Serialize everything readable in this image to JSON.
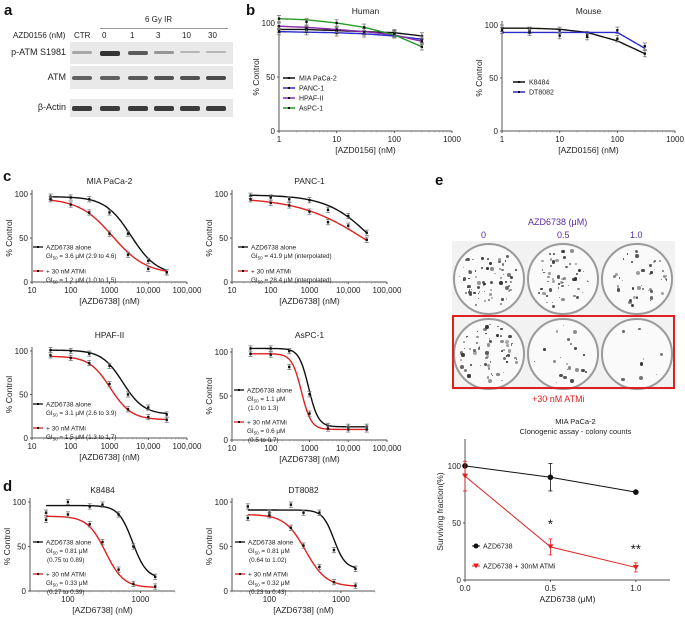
{
  "panel_labels": {
    "a": "a",
    "b": "b",
    "c": "c",
    "d": "d",
    "e": "e"
  },
  "panel_a": {
    "treatment_header": "6 Gy IR",
    "dose_axis_label": "AZD0156 (nM)",
    "lanes": [
      "CTR",
      "0",
      "1",
      "3",
      "10",
      "30"
    ],
    "rows": [
      {
        "label": "p-ATM S1981",
        "intensity": [
          0.25,
          1.0,
          0.75,
          0.35,
          0.15,
          0.15
        ]
      },
      {
        "label": "ATM",
        "intensity": [
          0.7,
          0.7,
          0.75,
          0.8,
          0.8,
          0.85
        ]
      },
      {
        "label": "β-Actin",
        "intensity": [
          0.95,
          0.95,
          0.95,
          0.95,
          0.95,
          0.95
        ]
      }
    ]
  },
  "chart_data": [
    {
      "id": "b-human",
      "type": "line",
      "title": "Human",
      "xlabel": "[AZD0156] (nM)",
      "ylabel": "% Control",
      "xscale": "log",
      "xlim": [
        1,
        1000
      ],
      "ylim": [
        0,
        100
      ],
      "xticks": [
        "1",
        "10",
        "100",
        "1000"
      ],
      "yticks": [
        "0",
        "50",
        "100"
      ],
      "legend_position": "center-left",
      "x": [
        1,
        3,
        10,
        30,
        100,
        300
      ],
      "series": [
        {
          "name": "MIA PaCa-2",
          "color": "#111111",
          "values": [
            94,
            94,
            93,
            92,
            91,
            88
          ],
          "curve": [
            94,
            94,
            93,
            92,
            91,
            88
          ]
        },
        {
          "name": "PANC-1",
          "color": "#2a2ad0",
          "values": [
            92,
            92,
            91,
            90,
            89,
            85
          ],
          "curve": [
            92,
            91.5,
            91,
            90,
            88,
            85
          ]
        },
        {
          "name": "HPAF-II",
          "color": "#8a2aa8",
          "values": [
            97,
            95,
            94,
            92,
            90,
            83
          ],
          "curve": [
            97,
            96,
            94,
            92,
            89,
            83
          ]
        },
        {
          "name": "AsPC-1",
          "color": "#2a9a2a",
          "values": [
            104,
            101,
            100,
            96,
            90,
            78
          ],
          "curve": [
            104,
            103,
            100,
            96,
            89,
            78
          ]
        }
      ]
    },
    {
      "id": "b-mouse",
      "type": "line",
      "title": "Mouse",
      "xlabel": "[AZD0156] (nM)",
      "ylabel": "% Control",
      "xscale": "log",
      "xlim": [
        1,
        1000
      ],
      "ylim": [
        0,
        100
      ],
      "xticks": [
        "1",
        "10",
        "100",
        "1000"
      ],
      "yticks": [
        "0",
        "50",
        "100"
      ],
      "legend_position": "center-left",
      "x": [
        1,
        3,
        10,
        30,
        100,
        300
      ],
      "series": [
        {
          "name": "K8484",
          "color": "#111111",
          "values": [
            97,
            95,
            95,
            91,
            95,
            73
          ],
          "curve": [
            97,
            97,
            96,
            93,
            85,
            73
          ]
        },
        {
          "name": "DT8082",
          "color": "#2a2ad0",
          "values": [
            95,
            93,
            90,
            89,
            87,
            80
          ],
          "curve": [
            93,
            93,
            93,
            93,
            93,
            78
          ]
        }
      ]
    },
    {
      "id": "c-mia",
      "type": "line",
      "title": "MIA PaCa-2",
      "xlabel": "[AZD6738] (nM)",
      "ylabel": "% Control",
      "xscale": "log",
      "xlim": [
        10,
        100000
      ],
      "ylim": [
        0,
        100
      ],
      "xticks": [
        "10",
        "100",
        "1000",
        "10,000",
        "100,000"
      ],
      "yticks": [
        "0",
        "50",
        "100"
      ],
      "x": [
        30,
        100,
        300,
        1000,
        3000,
        10000,
        30000
      ],
      "series": [
        {
          "name": "AZD6738 alone",
          "annotation": [
            "GI50 = 3.6 μM (2.9 to 4.6)"
          ],
          "color": "#111111",
          "values": [
            97,
            96,
            94,
            79,
            55,
            24,
            11
          ],
          "ic50": 3600,
          "top": 97,
          "bottom": 8,
          "hill": 1.3
        },
        {
          "name": "+ 30 nM ATMi",
          "annotation": [
            "GI50 = 1.2 μM (1.0 to 1.5)"
          ],
          "color": "#e02020",
          "values": [
            94,
            88,
            79,
            55,
            31,
            15,
            11
          ],
          "ic50": 1200,
          "top": 95,
          "bottom": 9,
          "hill": 1.0
        }
      ]
    },
    {
      "id": "c-panc",
      "type": "line",
      "title": "PANC-1",
      "xlabel": "[AZD6738] (nM)",
      "ylabel": "% Control",
      "xscale": "log",
      "xlim": [
        10,
        100000
      ],
      "ylim": [
        0,
        100
      ],
      "xticks": [
        "10",
        "100",
        "1000",
        "10,000",
        "100,000"
      ],
      "yticks": [
        "0",
        "50",
        "100"
      ],
      "x": [
        30,
        100,
        300,
        1000,
        3000,
        10000,
        30000
      ],
      "series": [
        {
          "name": "AZD6738 alone",
          "annotation": [
            "GI50 = 41.9 μM (interpolated)"
          ],
          "color": "#111111",
          "values": [
            98,
            96,
            94,
            93,
            82,
            75,
            56
          ],
          "ic50": 41900,
          "top": 99,
          "bottom": 0,
          "hill": 0.75
        },
        {
          "name": "+ 30 nM ATMi",
          "annotation": [
            "GI50 = 28.4 μM (interpolated)"
          ],
          "color": "#e02020",
          "values": [
            94,
            90,
            87,
            80,
            68,
            64,
            48
          ],
          "ic50": 28400,
          "top": 96,
          "bottom": 0,
          "hill": 0.5
        }
      ]
    },
    {
      "id": "c-hpaf",
      "type": "line",
      "title": "HPAF-II",
      "xlabel": "[AZD6738] (nM)",
      "ylabel": "% Control",
      "xscale": "log",
      "xlim": [
        10,
        100000
      ],
      "ylim": [
        0,
        100
      ],
      "xticks": [
        "10",
        "100",
        "1000",
        "10,000",
        "100,000"
      ],
      "yticks": [
        "0",
        "50",
        "100"
      ],
      "x": [
        30,
        100,
        300,
        1000,
        3000,
        10000,
        30000
      ],
      "series": [
        {
          "name": "AZD6738 alone",
          "annotation": [
            "GI50 = 3.1 μM (2.6 to 3.9)"
          ],
          "color": "#111111",
          "values": [
            101,
            100,
            97,
            83,
            50,
            35,
            27
          ],
          "ic50": 2200,
          "top": 101,
          "bottom": 27,
          "hill": 1.6
        },
        {
          "name": "+ 30 nM ATMi",
          "annotation": [
            "GI50 = 1.5 μM (1.3 to 1.7)"
          ],
          "color": "#e02020",
          "values": [
            95,
            92,
            86,
            62,
            33,
            24,
            21
          ],
          "ic50": 1050,
          "top": 94,
          "bottom": 21,
          "hill": 1.6
        }
      ]
    },
    {
      "id": "c-aspc",
      "type": "line",
      "title": "AsPC-1",
      "xlabel": "[AZD6738] (nM)",
      "ylabel": "% Control",
      "xscale": "log",
      "xlim": [
        10,
        100000
      ],
      "ylim": [
        0,
        100
      ],
      "xticks": [
        "10",
        "100",
        "1000",
        "10,000",
        "100,000"
      ],
      "yticks": [
        "0",
        "50",
        "100"
      ],
      "x": [
        30,
        100,
        300,
        1000,
        3000,
        10000,
        30000
      ],
      "series": [
        {
          "name": "AZD6738 alone",
          "annotation": [
            "GI50 = 1.1 μM",
            "(1.0 to 1.3)"
          ],
          "color": "#111111",
          "values": [
            104,
            104,
            101,
            52,
            16,
            15,
            15
          ],
          "ic50": 950,
          "top": 104,
          "bottom": 15,
          "hill": 3.5
        },
        {
          "name": "+ 30 nM ATMi",
          "annotation": [
            "GI50 = 0.6 μM",
            "(0.5 to 0.7)"
          ],
          "color": "#e02020",
          "values": [
            98,
            97,
            83,
            30,
            13,
            12,
            12
          ],
          "ic50": 620,
          "top": 98,
          "bottom": 12,
          "hill": 3.5
        }
      ]
    },
    {
      "id": "d-k8484",
      "type": "line",
      "title": "K8484",
      "xlabel": "[AZD6738] (nM)",
      "ylabel": "% Control",
      "xscale": "log",
      "xlim": [
        30,
        3000
      ],
      "ylim": [
        0,
        100
      ],
      "xticks": [
        "100",
        "1000"
      ],
      "yticks": [
        "0",
        "50",
        "100"
      ],
      "x": [
        50,
        100,
        200,
        300,
        500,
        800,
        1600
      ],
      "series": [
        {
          "name": "AZD6738 alone",
          "annotation": [
            "GI50 = 0.81 μM",
            "(0.75 to 0.89)"
          ],
          "color": "#111111",
          "values": [
            88,
            100,
            95,
            97,
            86,
            50,
            16
          ],
          "ic50": 780,
          "top": 96,
          "bottom": 14,
          "hill": 4.5
        },
        {
          "name": "+ 30 nM ATMi",
          "annotation": [
            "GI50 = 0.33 μM",
            "(0.27 to 0.39)"
          ],
          "color": "#e02020",
          "values": [
            80,
            86,
            75,
            55,
            24,
            8,
            5
          ],
          "ic50": 330,
          "top": 84,
          "bottom": 4,
          "hill": 3.5
        }
      ]
    },
    {
      "id": "d-dt8082",
      "type": "line",
      "title": "DT8082",
      "xlabel": "[AZD6738] (nM)",
      "ylabel": "% Control",
      "xscale": "log",
      "xlim": [
        30,
        3000
      ],
      "ylim": [
        0,
        100
      ],
      "xticks": [
        "100",
        "1000"
      ],
      "yticks": [
        "0",
        "50",
        "100"
      ],
      "x": [
        50,
        100,
        200,
        300,
        500,
        800,
        1600
      ],
      "series": [
        {
          "name": "AZD6738 alone",
          "annotation": [
            "GI50 = 0.81 μM",
            "(0.64 to 1.02)"
          ],
          "color": "#111111",
          "values": [
            95,
            88,
            97,
            88,
            88,
            46,
            25
          ],
          "ic50": 800,
          "top": 91,
          "bottom": 25,
          "hill": 5.5
        },
        {
          "name": "+ 30 nM ATMi",
          "annotation": [
            "GI50 = 0.32 μM",
            "(0.23 to 0.43)"
          ],
          "color": "#e02020",
          "values": [
            82,
            85,
            71,
            51,
            27,
            10,
            6
          ],
          "ic50": 320,
          "top": 86,
          "bottom": 5,
          "hill": 3.0
        }
      ]
    },
    {
      "id": "e-clono",
      "type": "line",
      "title": "MIA PaCa-2",
      "subtitle": "Clonogenic assay - colony counts",
      "xlabel": "AZD6738 (μM)",
      "ylabel": "Surviving fraction(%)",
      "xlim": [
        0,
        1.2
      ],
      "ylim": [
        0,
        120
      ],
      "xticks": [
        "0.0",
        "0.5",
        "1.0"
      ],
      "yticks": [
        "0",
        "50",
        "100"
      ],
      "legend_position": "bottom-left",
      "x": [
        0,
        0.5,
        1.0
      ],
      "series": [
        {
          "name": "AZD6738",
          "color": "#111111",
          "marker": "circle",
          "values": [
            100,
            90,
            77
          ],
          "err": [
            0,
            12,
            0
          ]
        },
        {
          "name": "AZD6738 + 30nM ATMi",
          "color": "#e02020",
          "marker": "triangle-down",
          "values": [
            91,
            29,
            11
          ],
          "err": [
            13,
            7,
            4
          ]
        }
      ],
      "significance": [
        {
          "x": 0.5,
          "label": "*"
        },
        {
          "x": 1.0,
          "label": "**"
        }
      ]
    }
  ],
  "panel_e": {
    "header": "AZD6738 (μM)",
    "doses": [
      "0",
      "0.5",
      "1.0"
    ],
    "atmi_label": "+30 nM ATMi",
    "colony_density_top": [
      1.0,
      0.75,
      0.6
    ],
    "colony_density_bottom": [
      0.9,
      0.3,
      0.12
    ],
    "header_color": "#5a2aa0",
    "atmi_color": "#e02020"
  }
}
